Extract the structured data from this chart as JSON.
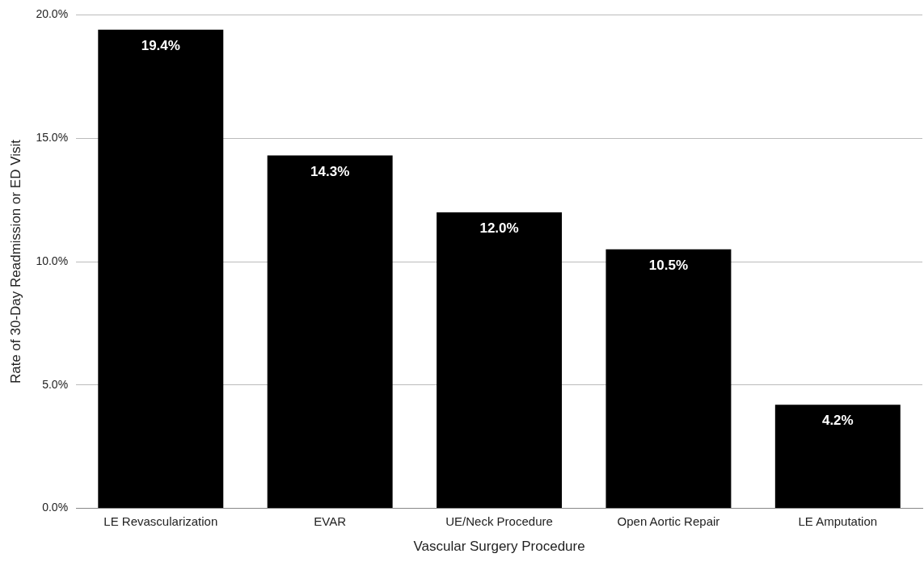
{
  "chart_data": {
    "type": "bar",
    "xlabel": "Vascular Surgery Procedure",
    "ylabel": "Rate of 30-Day Readmission or ED Visit",
    "categories": [
      "LE Revascularization",
      "EVAR",
      "UE/Neck Procedure",
      "Open Aortic Repair",
      "LE Amputation"
    ],
    "values": [
      19.4,
      14.3,
      12.0,
      10.5,
      4.2
    ],
    "value_labels": [
      "19.4%",
      "14.3%",
      "12.0%",
      "10.5%",
      "4.2%"
    ],
    "color": "#000000",
    "ylim": [
      0,
      20
    ],
    "yticks": [
      {
        "value": 0,
        "label": "0.0%"
      },
      {
        "value": 5,
        "label": "5.0%"
      },
      {
        "value": 10,
        "label": "10.0%"
      },
      {
        "value": 15,
        "label": "15.0%"
      },
      {
        "value": 20,
        "label": "20.0%"
      }
    ],
    "grid": "y",
    "legend": false
  }
}
